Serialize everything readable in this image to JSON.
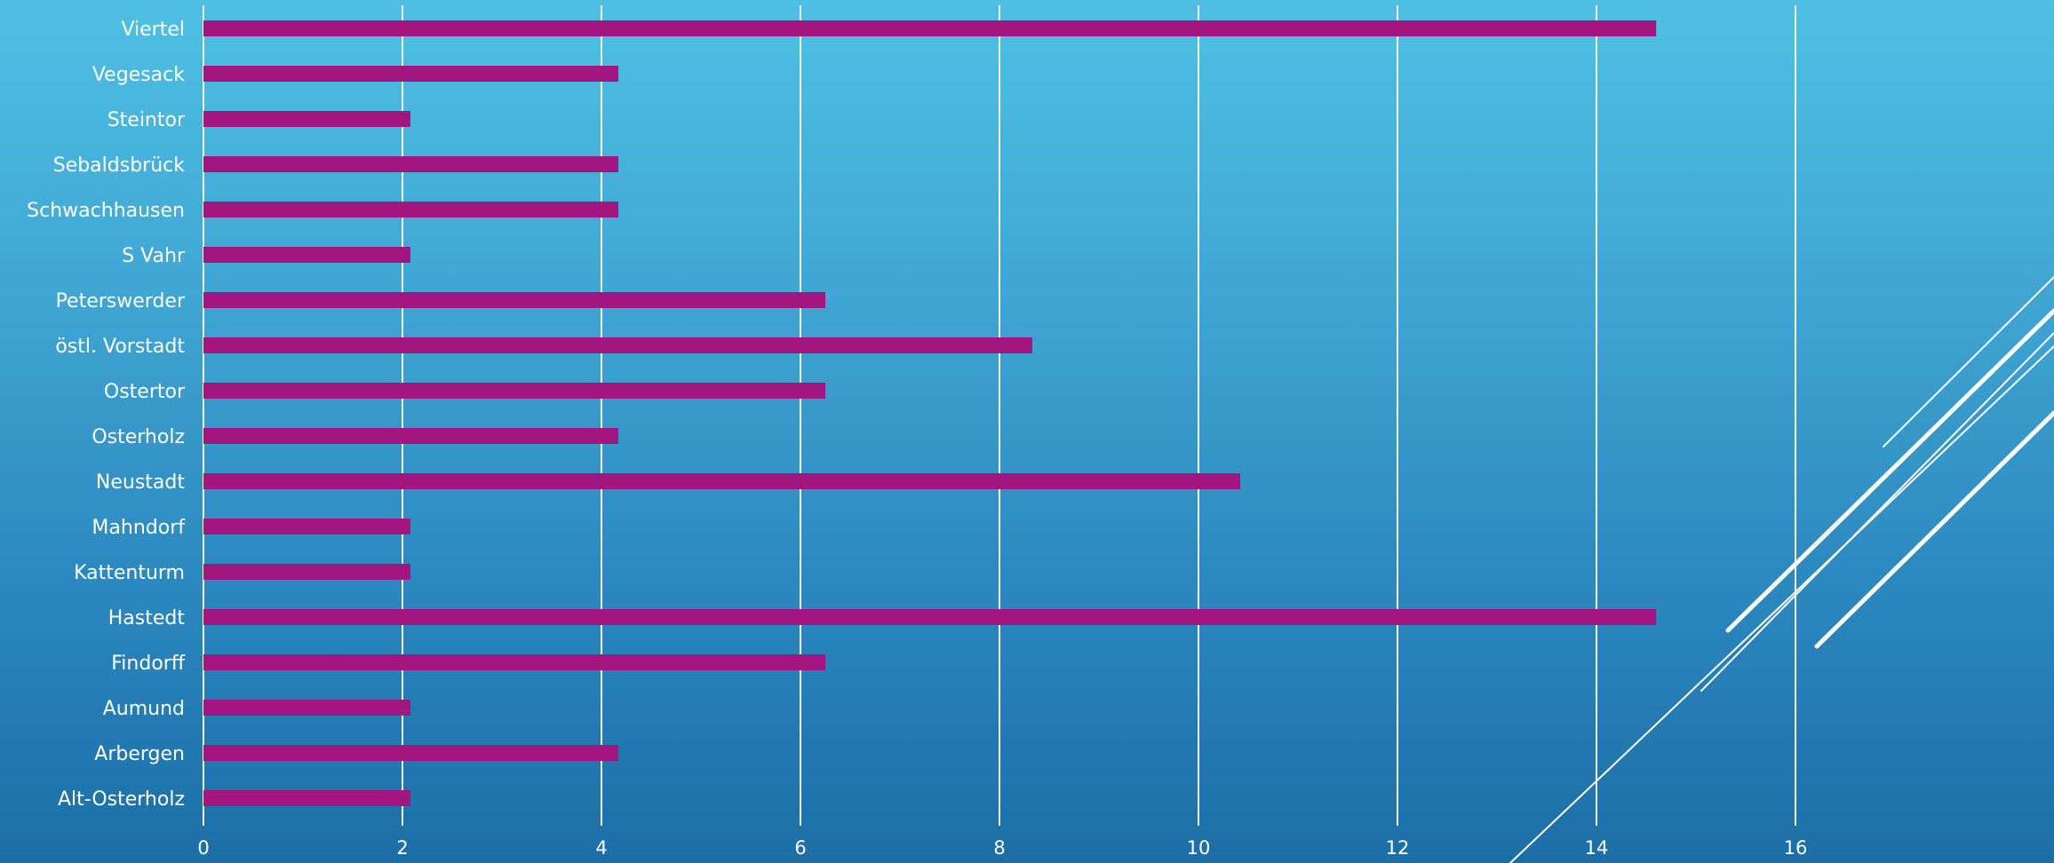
{
  "chart_data": {
    "type": "bar",
    "orientation": "horizontal",
    "categories": [
      "Viertel",
      "Vegesack",
      "Steintor",
      "Sebaldsbrück",
      "Schwachhausen",
      "S Vahr",
      "Peterswerder",
      "östl. Vorstadt",
      "Ostertor",
      "Osterholz",
      "Neustadt",
      "Mahndorf",
      "Kattenturm",
      "Hastedt",
      "Findorff",
      "Aumund",
      "Arbergen",
      "Alt-Osterholz"
    ],
    "values": [
      14.6,
      4.17,
      2.08,
      4.17,
      4.17,
      2.08,
      6.25,
      8.33,
      6.25,
      4.17,
      10.42,
      2.08,
      2.08,
      14.6,
      6.25,
      2.08,
      4.17,
      2.08
    ],
    "xlim": [
      0,
      16
    ],
    "xticks": [
      0,
      2,
      4,
      6,
      8,
      10,
      12,
      14,
      16
    ],
    "tick_labels": [
      "0",
      "2",
      "4",
      "6",
      "8",
      "10",
      "12",
      "14",
      "16"
    ],
    "grid": true,
    "legend": "none",
    "title": "",
    "xlabel": "",
    "ylabel": ""
  },
  "colors": {
    "bar": "#a3167f",
    "grid": "#ffffff",
    "text": "#ffffff",
    "background_top": "#4fc0e3",
    "background_bottom": "#1c6ea6"
  },
  "decoration": {
    "icon": "diagonal-lines-decoration"
  }
}
